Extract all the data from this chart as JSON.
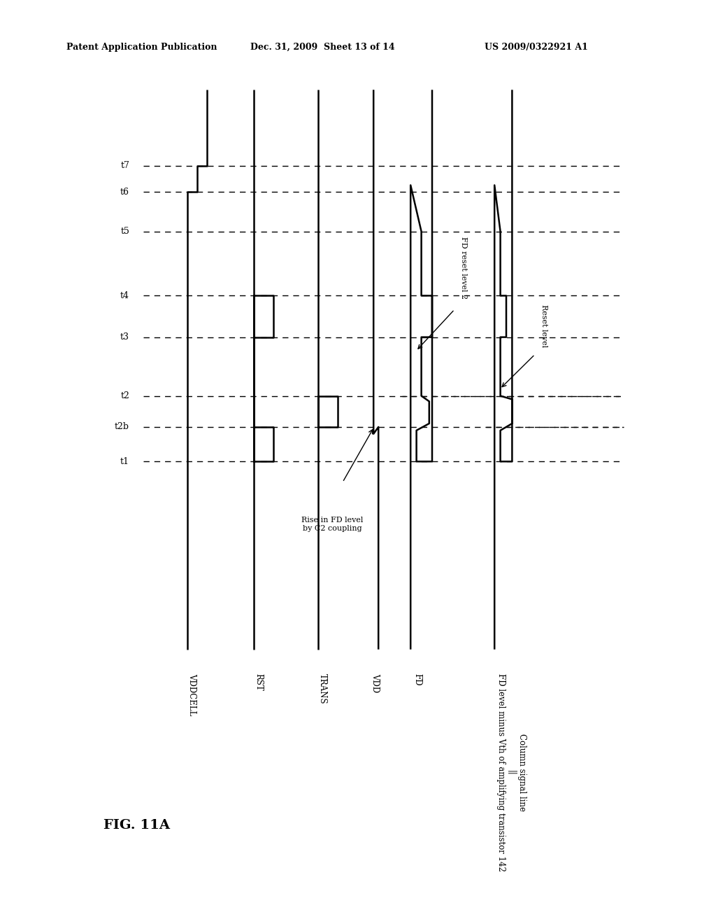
{
  "title_left": "Patent Application Publication",
  "title_mid": "Dec. 31, 2009  Sheet 13 of 14",
  "title_right": "US 2009/0322921 A1",
  "fig_label": "FIG. 11A",
  "bg_color": "#ffffff",
  "annotations": {
    "rise_fd": "Rise in FD level\nby C2 coupling",
    "fd_reset": "FD reset level 2",
    "reset_level": "Reset level"
  },
  "signal_names": [
    "VDDCELL",
    "RST",
    "TRANS",
    "VDD",
    "FD",
    "Column signal line\n||\nFD level minus Vth of amplifying transistor 142"
  ],
  "time_labels": [
    "t1",
    "t2b",
    "t2",
    "t3",
    "t4",
    "t5",
    "t6",
    "t7"
  ]
}
